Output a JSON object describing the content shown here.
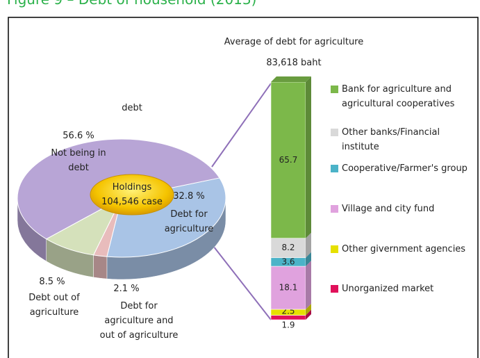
{
  "title": "Figure 9 – Debt of household (2013)",
  "chart_data": [
    {
      "type": "pie",
      "title": "debt",
      "annotation": [
        "Holdings",
        "104,546 case"
      ],
      "categories": [
        "Debt for agriculture",
        "Debt for agriculture and out of agriculture",
        "Debt out of agriculture",
        "Not being in debt"
      ],
      "values": [
        32.8,
        2.1,
        8.5,
        56.6
      ],
      "value_labels": [
        "32.8 %",
        "2.1 %",
        "8.5 %",
        "56.6 %"
      ],
      "colors": [
        "#a9c4e6",
        "#e8bcbc",
        "#d5e1bb",
        "#b8a5d6"
      ]
    },
    {
      "type": "bar",
      "stacked": true,
      "title": "Average of debt for agriculture",
      "subtitle": "83,618 baht",
      "ylim": [
        0,
        100
      ],
      "series": [
        {
          "name": "Bank for agriculture and agricultural cooperatives",
          "color": "#7cb84a",
          "values": [
            65.7
          ]
        },
        {
          "name": "Other banks/Financial institute",
          "color": "#d9d9d9",
          "values": [
            8.2
          ]
        },
        {
          "name": "Cooperative/Farmer's group",
          "color": "#4bb3c8",
          "values": [
            3.6
          ]
        },
        {
          "name": "Village and city fund",
          "color": "#e0a2de",
          "values": [
            18.1
          ]
        },
        {
          "name": "Other givernment agencies",
          "color": "#e6e000",
          "values": [
            2.5
          ]
        },
        {
          "name": "Unorganized market",
          "color": "#e0105a",
          "values": [
            1.9
          ]
        }
      ]
    }
  ]
}
